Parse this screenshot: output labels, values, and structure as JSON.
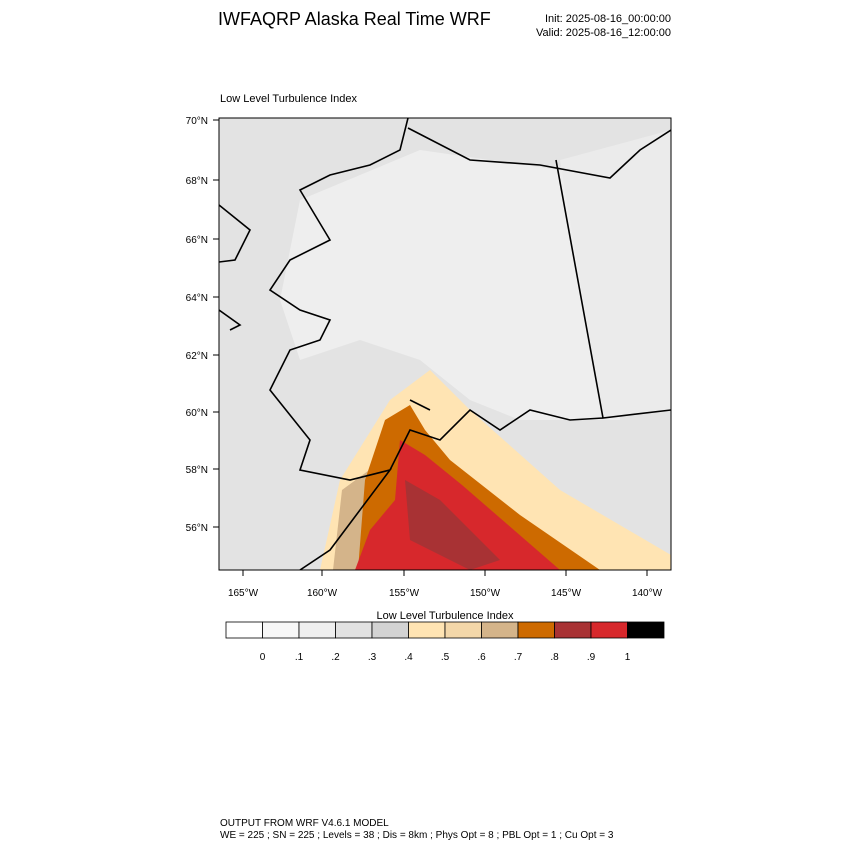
{
  "header": {
    "title": "IWFAQRP Alaska Real Time WRF",
    "init": "Init: 2025-08-16_00:00:00",
    "valid": "Valid: 2025-08-16_12:00:00"
  },
  "map": {
    "title": "Low Level Turbulence Index",
    "lat_labels": [
      "70°N",
      "68°N",
      "66°N",
      "64°N",
      "62°N",
      "60°N",
      "58°N",
      "56°N"
    ],
    "lon_labels": [
      "165°W",
      "160°W",
      "155°W",
      "150°W",
      "145°W",
      "140°W"
    ]
  },
  "colorbar": {
    "title": "Low Level Turbulence Index",
    "colors": [
      "#ffffff",
      "#f7f7f7",
      "#efefef",
      "#e2e2e2",
      "#d3d3d3",
      "#ffe4b3",
      "#f3d7a9",
      "#d4b48a",
      "#cd6a00",
      "#a83234",
      "#d7282c",
      "#000000"
    ],
    "labels": [
      "0",
      ".1",
      ".2",
      ".3",
      ".4",
      ".5",
      ".6",
      ".7",
      ".8",
      ".9",
      "1"
    ]
  },
  "footer": {
    "line1": "OUTPUT FROM WRF V4.6.1 MODEL",
    "line2": "WE = 225 ; SN = 225 ; Levels = 38 ; Dis = 8km ; Phys Opt = 8 ; PBL Opt = 1 ; Cu Opt = 3"
  }
}
